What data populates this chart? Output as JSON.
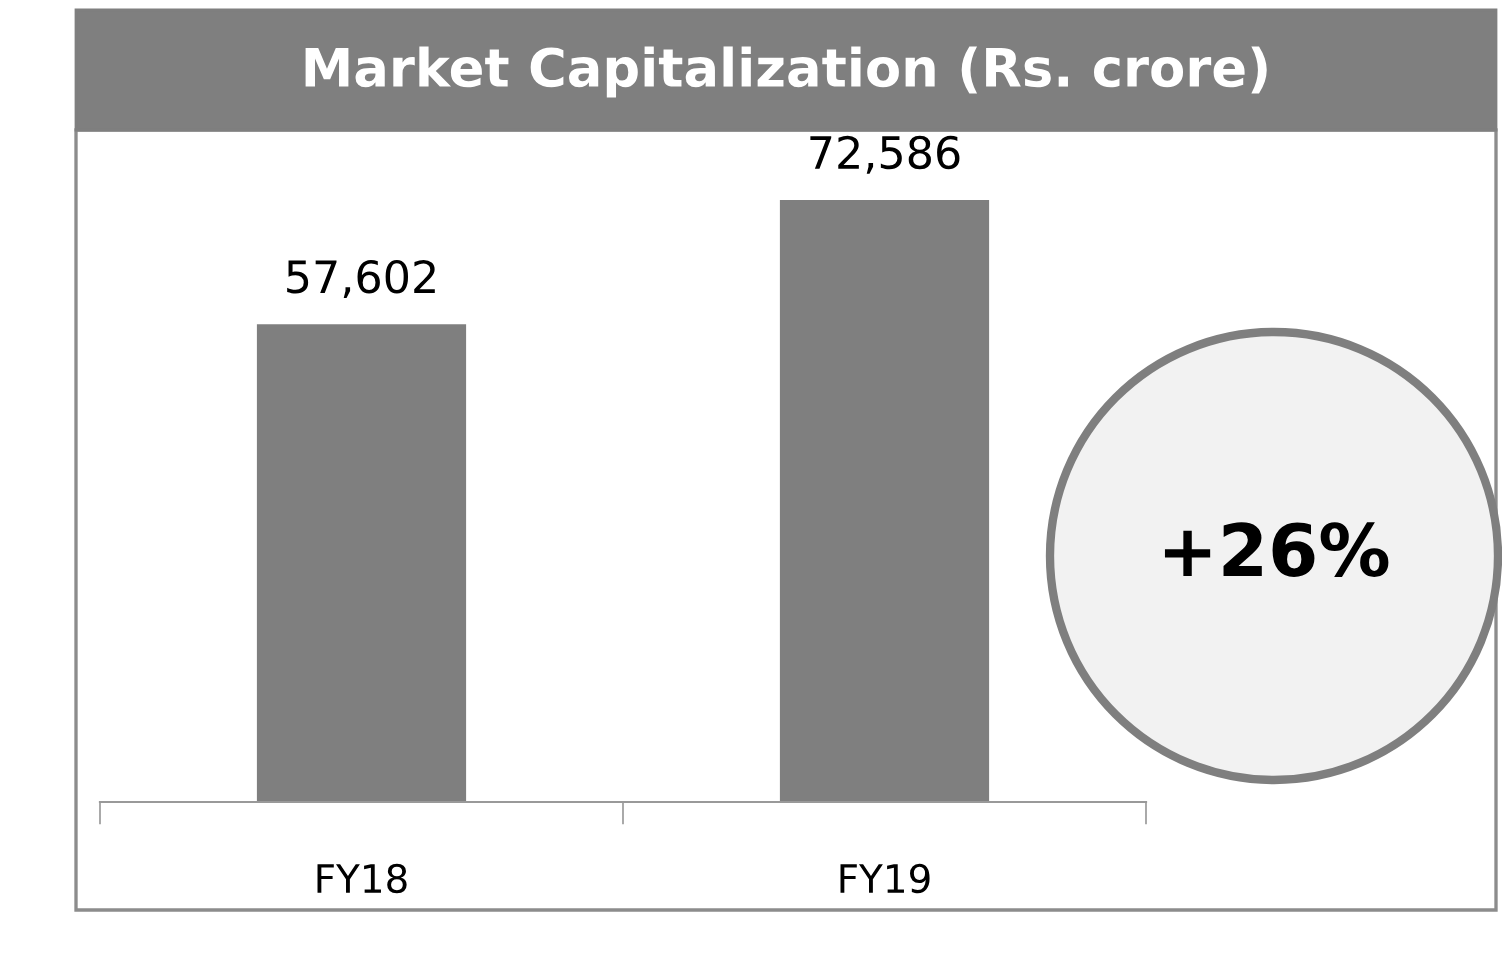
{
  "chart_data": {
    "type": "bar",
    "title": "Market Capitalization (Rs. crore)",
    "categories": [
      "FY18",
      "FY19"
    ],
    "values": [
      57602,
      72586
    ],
    "value_labels": [
      "57,602",
      "72,586"
    ],
    "color": "#7f7f7f",
    "annotations": [
      "+26%"
    ]
  }
}
